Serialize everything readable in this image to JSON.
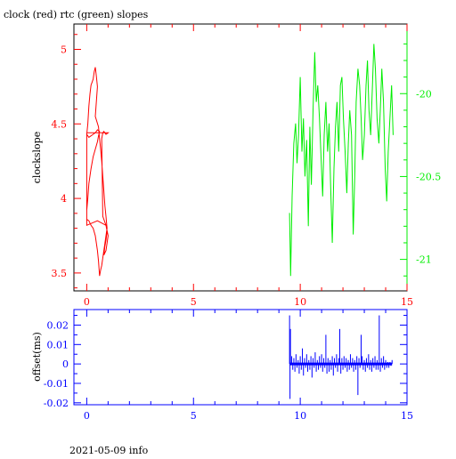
{
  "title": "clock (red) rtc (green) slopes",
  "footer": "2021-05-09 info",
  "colors": {
    "clock": "#ff0000",
    "rtc": "#00ee00",
    "offset": "#0000ff",
    "axis": "#000000"
  },
  "chart_data": [
    {
      "type": "line",
      "ylabel": "clockslope",
      "xlim": [
        -0.6,
        15
      ],
      "ylim": [
        3.38,
        5.17
      ],
      "y2lim": [
        -21.19,
        -19.58
      ],
      "x_ticks": [
        "0",
        "5",
        "10",
        "15"
      ],
      "y_ticks": [
        "3.5",
        "4",
        "4.5",
        "5"
      ],
      "y2_ticks": [
        "-20",
        "-20.5",
        "-21"
      ],
      "grid": false,
      "series": [
        {
          "axis": "left",
          "x": [
            0.0,
            0.05,
            0.1,
            0.15,
            0.2,
            0.25,
            0.3,
            0.35,
            0.4,
            0.45,
            0.5,
            0.45,
            0.4,
            0.55,
            0.6,
            0.65,
            0.7,
            0.75,
            0.8,
            0.85,
            0.9,
            0.95,
            0.9,
            0.85,
            0.8,
            0.75,
            0.7,
            0.65,
            0.6,
            0.55,
            0.5,
            0.4,
            0.3,
            0.2,
            0.1,
            0.0,
            0.0,
            0.05,
            0.1,
            0.2,
            0.3,
            0.4,
            0.5,
            0.55,
            0.6,
            0.5,
            0.4,
            0.3,
            0.2,
            0.1,
            0.0,
            0.0,
            0.5,
            0.9,
            1.0,
            0.95,
            0.9,
            0.8,
            0.85,
            0.9,
            0.95,
            0.9,
            0.85,
            0.8,
            0.75,
            0.7,
            0.75,
            0.8,
            0.9,
            1.0,
            0.0
          ],
          "y": [
            4.43,
            4.5,
            4.62,
            4.7,
            4.76,
            4.78,
            4.8,
            4.85,
            4.88,
            4.82,
            4.75,
            4.65,
            4.55,
            4.48,
            4.4,
            4.33,
            4.25,
            4.15,
            4.05,
            3.95,
            3.88,
            3.8,
            3.75,
            3.7,
            3.65,
            3.6,
            3.55,
            3.52,
            3.48,
            3.58,
            3.65,
            3.75,
            3.8,
            3.82,
            3.85,
            3.86,
            3.92,
            4.0,
            4.1,
            4.2,
            4.28,
            4.33,
            4.38,
            4.42,
            4.45,
            4.46,
            4.44,
            4.43,
            4.42,
            4.41,
            4.43,
            3.82,
            3.85,
            3.82,
            3.75,
            3.7,
            3.65,
            3.62,
            3.68,
            3.72,
            3.78,
            3.82,
            3.84,
            3.86,
            3.88,
            4.4,
            4.44,
            4.45,
            4.43,
            4.44,
            4.44
          ]
        },
        {
          "axis": "right",
          "x": [
            9.5,
            9.55,
            9.62,
            9.7,
            9.78,
            9.85,
            9.92,
            10.0,
            10.08,
            10.15,
            10.22,
            10.3,
            10.38,
            10.45,
            10.52,
            10.6,
            10.68,
            10.75,
            10.82,
            10.9,
            10.98,
            11.05,
            11.12,
            11.2,
            11.28,
            11.35,
            11.42,
            11.5,
            11.58,
            11.65,
            11.72,
            11.8,
            11.88,
            11.95,
            12.02,
            12.1,
            12.18,
            12.25,
            12.32,
            12.4,
            12.48,
            12.55,
            12.62,
            12.7,
            12.78,
            12.85,
            12.92,
            13.0,
            13.08,
            13.15,
            13.22,
            13.3,
            13.38,
            13.45,
            13.52,
            13.6,
            13.68,
            13.75,
            13.82,
            13.9,
            13.98,
            14.05,
            14.12,
            14.2,
            14.28,
            14.35
          ],
          "y": [
            -20.72,
            -21.1,
            -20.62,
            -20.3,
            -20.18,
            -20.42,
            -20.25,
            -19.9,
            -20.35,
            -20.15,
            -20.5,
            -20.28,
            -20.8,
            -20.2,
            -20.55,
            -20.1,
            -19.75,
            -20.05,
            -19.95,
            -20.15,
            -20.4,
            -20.62,
            -20.25,
            -20.05,
            -20.35,
            -20.18,
            -20.55,
            -20.9,
            -20.45,
            -20.2,
            -20.05,
            -20.35,
            -19.95,
            -19.9,
            -20.15,
            -20.35,
            -20.6,
            -20.3,
            -20.1,
            -20.25,
            -20.85,
            -20.5,
            -20.05,
            -19.85,
            -19.95,
            -20.15,
            -20.4,
            -20.25,
            -19.95,
            -19.8,
            -20.1,
            -20.25,
            -19.95,
            -19.7,
            -19.85,
            -20.15,
            -20.3,
            -20.1,
            -19.85,
            -20.05,
            -20.45,
            -20.65,
            -20.35,
            -20.15,
            -19.95,
            -20.25
          ]
        }
      ]
    },
    {
      "type": "scatter",
      "ylabel": "offset(ms)",
      "xlim": [
        -0.6,
        15
      ],
      "ylim": [
        -0.021,
        0.028
      ],
      "x_ticks": [
        "0",
        "5",
        "10",
        "15"
      ],
      "y_ticks": [
        "0.02",
        "0.01",
        "0",
        "-0.01",
        "-0.02"
      ],
      "grid": false,
      "series": [
        {
          "points_x": [
            9.5,
            9.52,
            9.54,
            9.6,
            9.65,
            9.7,
            9.75,
            9.8,
            9.85,
            9.9,
            9.95,
            10.0,
            10.05,
            10.1,
            10.15,
            10.2,
            10.25,
            10.3,
            10.35,
            10.4,
            10.45,
            10.5,
            10.55,
            10.6,
            10.65,
            10.7,
            10.75,
            10.8,
            10.85,
            10.9,
            10.95,
            11.0,
            11.05,
            11.1,
            11.15,
            11.2,
            11.25,
            11.3,
            11.35,
            11.4,
            11.45,
            11.5,
            11.55,
            11.6,
            11.65,
            11.7,
            11.75,
            11.8,
            11.85,
            11.9,
            11.95,
            12.0,
            12.05,
            12.1,
            12.15,
            12.2,
            12.25,
            12.3,
            12.35,
            12.4,
            12.45,
            12.5,
            12.55,
            12.6,
            12.65,
            12.7,
            12.75,
            12.8,
            12.85,
            12.9,
            12.95,
            13.0,
            13.05,
            13.1,
            13.15,
            13.2,
            13.25,
            13.3,
            13.35,
            13.4,
            13.45,
            13.5,
            13.55,
            13.6,
            13.65,
            13.7,
            13.75,
            13.8,
            13.85,
            13.9,
            13.95,
            14.0,
            14.05,
            14.1,
            14.15,
            14.2,
            14.25,
            14.3
          ],
          "points_y": [
            0.025,
            -0.018,
            0.018,
            0.004,
            -0.003,
            0.003,
            -0.004,
            0.005,
            -0.002,
            0.002,
            -0.005,
            0.004,
            -0.003,
            0.008,
            -0.006,
            0.003,
            -0.002,
            0.005,
            -0.004,
            0.002,
            -0.003,
            0.004,
            -0.007,
            0.003,
            -0.002,
            0.006,
            -0.004,
            0.002,
            -0.003,
            0.004,
            -0.002,
            0.005,
            -0.004,
            0.003,
            -0.002,
            0.015,
            -0.005,
            0.003,
            -0.004,
            0.002,
            -0.003,
            0.004,
            -0.006,
            0.003,
            -0.002,
            0.005,
            -0.004,
            0.003,
            0.018,
            -0.005,
            0.003,
            -0.003,
            0.004,
            -0.002,
            0.003,
            -0.004,
            0.002,
            -0.003,
            0.005,
            -0.002,
            0.003,
            -0.004,
            0.002,
            -0.003,
            0.004,
            -0.016,
            0.003,
            -0.002,
            0.015,
            0.004,
            -0.003,
            0.002,
            -0.004,
            0.003,
            -0.002,
            0.005,
            -0.003,
            0.002,
            -0.004,
            0.003,
            -0.002,
            0.004,
            -0.003,
            0.002,
            -0.003,
            0.025,
            -0.004,
            0.003,
            -0.002,
            0.004,
            -0.003,
            0.002,
            -0.002,
            0.001,
            -0.002,
            0.001,
            -0.001,
            0.002
          ]
        }
      ]
    }
  ]
}
